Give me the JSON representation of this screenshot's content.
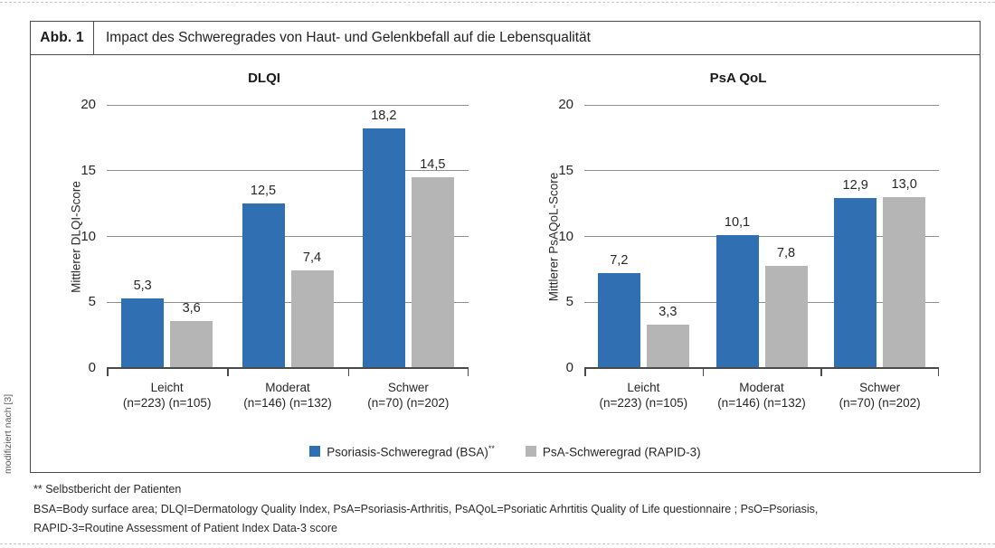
{
  "figure_header": {
    "abb_label": "Abb. 1",
    "title": "Impact des Schweregrades von Haut- und Gelenkbefall auf die Lebensqualität"
  },
  "source_note": "modifiziert nach [3]",
  "colors": {
    "bar_blue": "#2f6fb2",
    "bar_gray": "#b5b5b5",
    "gridline": "#8f8f8f",
    "axis": "#4a4a4a",
    "box_border": "#4a4a4a"
  },
  "legend": {
    "items": [
      {
        "label": "Psoriasis-Schweregrad (BSA)",
        "sup": "**",
        "color": "#2f6fb2"
      },
      {
        "label": "PsA-Schweregrad (RAPID-3)",
        "sup": "",
        "color": "#b5b5b5"
      }
    ]
  },
  "chart_data": [
    {
      "type": "bar",
      "title": "DLQI",
      "ylabel": "Mittlerer DLQI-Score",
      "ylim": [
        0,
        20
      ],
      "yticks": [
        0,
        5,
        10,
        15,
        20
      ],
      "grid": true,
      "legend_position": "bottom",
      "categories": [
        "Leicht",
        "Moderat",
        "Schwer"
      ],
      "category_sublabels": [
        "(n=223) (n=105)",
        "(n=146) (n=132)",
        "(n=70) (n=202)"
      ],
      "series": [
        {
          "name": "Psoriasis-Schweregrad (BSA)**",
          "color": "#2f6fb2",
          "values": [
            5.3,
            12.5,
            18.2
          ],
          "labels": [
            "5,3",
            "12,5",
            "18,2"
          ]
        },
        {
          "name": "PsA-Schweregrad (RAPID-3)",
          "color": "#b5b5b5",
          "values": [
            3.6,
            7.4,
            14.5
          ],
          "labels": [
            "3,6",
            "7,4",
            "14,5"
          ]
        }
      ]
    },
    {
      "type": "bar",
      "title": "PsA QoL",
      "ylabel": "Mittlerer PsAQoL-Score",
      "ylim": [
        0,
        20
      ],
      "yticks": [
        0,
        5,
        10,
        15,
        20
      ],
      "grid": true,
      "legend_position": "bottom",
      "categories": [
        "Leicht",
        "Moderat",
        "Schwer"
      ],
      "category_sublabels": [
        "(n=223) (n=105)",
        "(n=146) (n=132)",
        "(n=70) (n=202)"
      ],
      "series": [
        {
          "name": "Psoriasis-Schweregrad (BSA)**",
          "color": "#2f6fb2",
          "values": [
            7.2,
            10.1,
            12.9
          ],
          "labels": [
            "7,2",
            "10,1",
            "12,9"
          ]
        },
        {
          "name": "PsA-Schweregrad (RAPID-3)",
          "color": "#b5b5b5",
          "values": [
            3.3,
            7.8,
            13.0
          ],
          "labels": [
            "3,3",
            "7,8",
            "13,0"
          ]
        }
      ]
    }
  ],
  "footnotes": {
    "line1": "** Selbstbericht der Patienten",
    "line2": "BSA=Body surface area; DLQI=Dermatology Quality Index, PsA=Psoriasis-Arthritis, PsAQoL=Psoriatic Arhrtitis Quality of Life questionnaire ; PsO=Psoriasis,",
    "line3": "RAPID-3=Routine Assessment of Patient Index Data-3 score"
  }
}
